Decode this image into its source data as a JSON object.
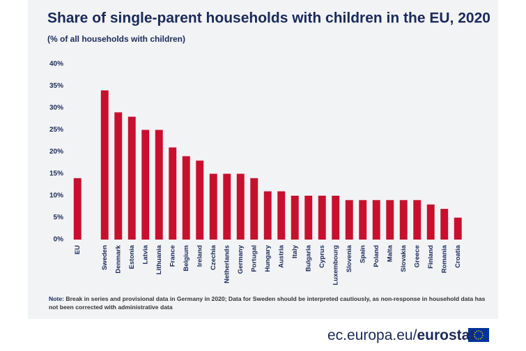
{
  "chart_data": {
    "type": "bar",
    "title": "Share of single-parent households with children in the EU, 2020",
    "subtitle": "(% of all households with children)",
    "categories": [
      "EU",
      null,
      "Sweden",
      "Denmark",
      "Estonia",
      "Latvia",
      "Lithuania",
      "France",
      "Belgium",
      "Ireland",
      "Czechia",
      "Netherlands",
      "Germany",
      "Portugal",
      "Hungary",
      "Austria",
      "Italy",
      "Bulgaria",
      "Cyprus",
      "Luxembourg",
      "Slovenia",
      "Spain",
      "Poland",
      "Malta",
      "Slovakia",
      "Greece",
      "Finland",
      "Romania",
      "Croatia"
    ],
    "values": [
      14,
      null,
      34,
      29,
      28,
      25,
      25,
      21,
      19,
      18,
      15,
      15,
      15,
      14,
      11,
      11,
      10,
      10,
      10,
      10,
      9,
      9,
      9,
      9,
      9,
      9,
      8,
      7,
      5
    ],
    "color": "#c8102e",
    "ylim": [
      0,
      40
    ],
    "yticks": [
      {
        "value": 0,
        "label": "0%"
      },
      {
        "value": 5,
        "label": "5%"
      },
      {
        "value": 10,
        "label": "10%"
      },
      {
        "value": 15,
        "label": "15%"
      },
      {
        "value": 20,
        "label": "20%"
      },
      {
        "value": 25,
        "label": "25%"
      },
      {
        "value": 30,
        "label": "30%"
      },
      {
        "value": 35,
        "label": "35%"
      },
      {
        "value": 40,
        "label": "40%"
      }
    ],
    "grid": false,
    "note_label": "Note:",
    "note": "Break in series and provisional data in Germany in 2020; Data for Sweden should be interpreted cautiously, as non-response in household data has not been corrected with administrative data"
  },
  "footer": {
    "site": "ec.europa.eu/",
    "brand": "eurostat"
  }
}
